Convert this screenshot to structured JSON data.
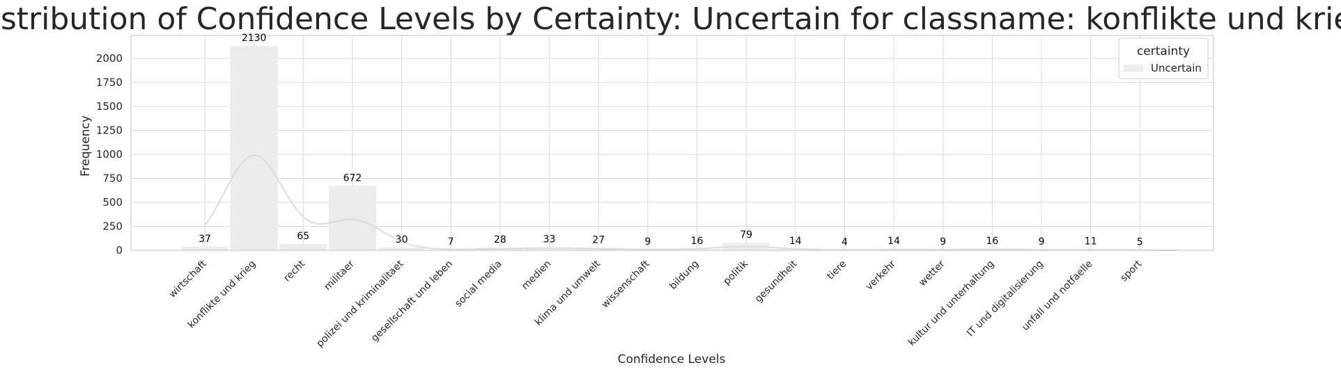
{
  "chart_data": {
    "type": "bar",
    "title": "Distribution of Confidence Levels by Certainty: Uncertain for classname: konflikte und krieg",
    "xlabel": "Confidence Levels",
    "ylabel": "Frequency",
    "ylim": [
      0,
      2240
    ],
    "yticks": [
      0,
      250,
      500,
      750,
      1000,
      1250,
      1500,
      1750,
      2000
    ],
    "grid": true,
    "categories": [
      "wirtschaft",
      "konflikte und krieg",
      "recht",
      "militaer",
      "polizei und kriminalitaet",
      "gesellschaft und leben",
      "social media",
      "medien",
      "klima und umwelt",
      "wissenschaft",
      "bildung",
      "politik",
      "gesundheit",
      "tiere",
      "verkehr",
      "wetter",
      "kultur und unterhaltung",
      "IT und digitalisierung",
      "unfall und notfaelle",
      "sport"
    ],
    "series": [
      {
        "name": "Uncertain",
        "values": [
          37,
          2130,
          65,
          672,
          30,
          7,
          28,
          33,
          27,
          9,
          16,
          79,
          14,
          4,
          14,
          9,
          16,
          9,
          11,
          5
        ],
        "labels": [
          "37",
          "2130",
          "65",
          "672",
          "30",
          "7",
          "28",
          "33",
          "27",
          "9",
          "16",
          "79",
          "14",
          "4",
          "14",
          "9",
          "16",
          "9",
          "11",
          "5"
        ]
      }
    ],
    "kde": true,
    "legend": {
      "title": "certainty",
      "placement": "top-right"
    },
    "colors": {
      "bar": "#ececec",
      "kde": "#dcdcdc",
      "grid": "#d9d9d9",
      "frame": "#cccccc"
    }
  }
}
